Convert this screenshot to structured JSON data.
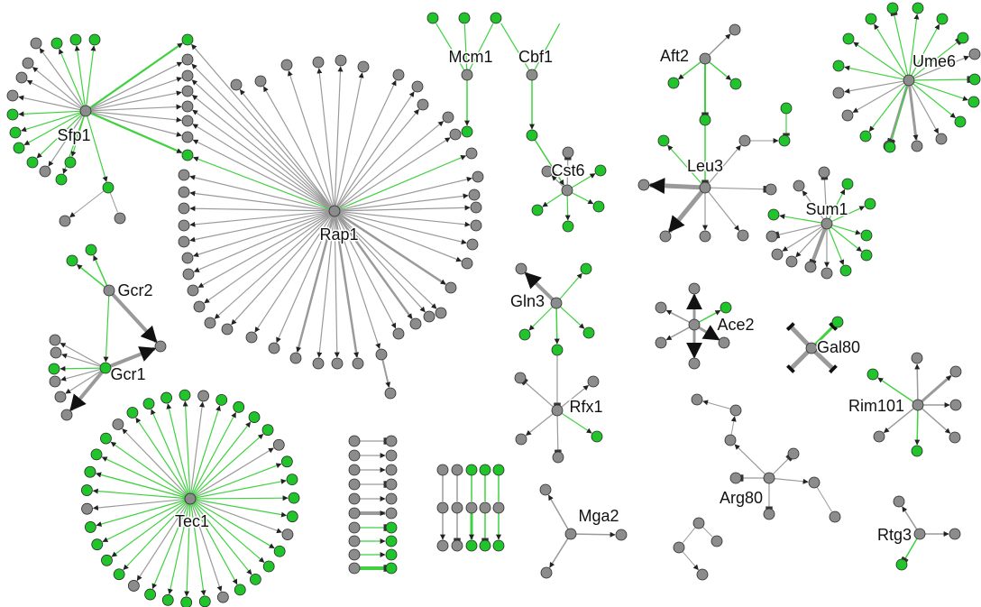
{
  "colors": {
    "node_gray": "#8c8c8c",
    "node_green": "#22c42b",
    "node_stroke": "#2a2a2a",
    "edge_gray": "#9a9a9a",
    "edge_green": "#3fd13f",
    "arrow": "#222222",
    "background": "#ffffff"
  },
  "hubs": [
    {
      "id": "Sfp1",
      "label": "Sfp1"
    },
    {
      "id": "Rap1",
      "label": "Rap1"
    },
    {
      "id": "Mcm1",
      "label": "Mcm1"
    },
    {
      "id": "Cbf1",
      "label": "Cbf1"
    },
    {
      "id": "Cst6",
      "label": "Cst6"
    },
    {
      "id": "Aft2",
      "label": "Aft2"
    },
    {
      "id": "Leu3",
      "label": "Leu3"
    },
    {
      "id": "Ume6",
      "label": "Ume6"
    },
    {
      "id": "Sum1",
      "label": "Sum1"
    },
    {
      "id": "Gcr2",
      "label": "Gcr2"
    },
    {
      "id": "Gcr1",
      "label": "Gcr1"
    },
    {
      "id": "Gln3",
      "label": "Gln3"
    },
    {
      "id": "Ace2",
      "label": "Ace2"
    },
    {
      "id": "Gal80",
      "label": "Gal80"
    },
    {
      "id": "Rfx1",
      "label": "Rfx1"
    },
    {
      "id": "Rim101",
      "label": "Rim101"
    },
    {
      "id": "Tec1",
      "label": "Tec1"
    },
    {
      "id": "Arg80",
      "label": "Arg80"
    },
    {
      "id": "Mga2",
      "label": "Mga2"
    },
    {
      "id": "Rtg3",
      "label": "Rtg3"
    }
  ]
}
